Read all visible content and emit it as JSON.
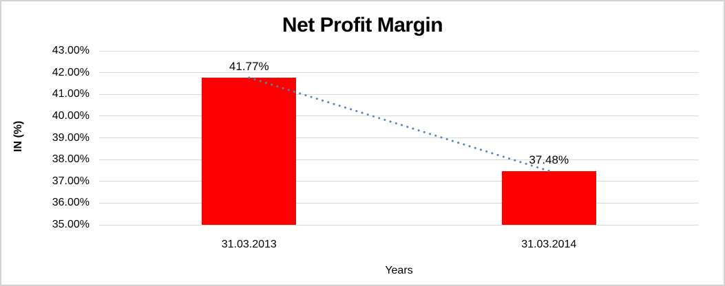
{
  "chart_data": {
    "type": "bar",
    "title": "Net Profit Margin",
    "xlabel": "Years",
    "ylabel": "IN (%)",
    "categories": [
      "31.03.2013",
      "31.03.2014"
    ],
    "series": [
      {
        "name": "Net Profit Margin",
        "values": [
          41.77,
          37.48
        ]
      }
    ],
    "data_labels": [
      "41.77%",
      "37.48%"
    ],
    "ylim": [
      35,
      43
    ],
    "ytick_step": 1,
    "ytick_labels": [
      "43.00%",
      "42.00%",
      "41.00%",
      "40.00%",
      "39.00%",
      "38.00%",
      "37.00%",
      "36.00%",
      "35.00%"
    ],
    "grid": true,
    "legend": "none",
    "colors": {
      "bar": "#ff0000",
      "trendline": "#4f86c6",
      "gridline": "#d9d9d9",
      "text": "#000000",
      "chart_border": "#d3d3d3",
      "background": "#ffffff"
    },
    "trendline": {
      "type": "linear",
      "style": "dotted",
      "from_value": 41.77,
      "to_value": 37.48
    }
  }
}
